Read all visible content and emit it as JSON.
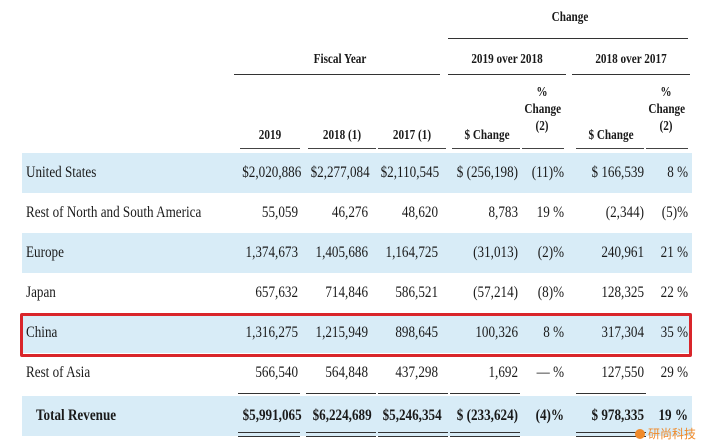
{
  "header": {
    "change": "Change",
    "fiscal_year": "Fiscal Year",
    "over_2018": "2019 over 2018",
    "over_2017": "2018 over 2017",
    "columns": [
      "2019",
      "2018 (1)",
      "2017 (1)",
      "$ Change",
      "% Change (2)",
      "$ Change",
      "% Change (2)"
    ]
  },
  "rows": [
    {
      "label": "United States",
      "v2019": "$2,020,886",
      "v2018": "$2,277,084",
      "v2017": "$2,110,545",
      "chg1": "$ (256,198)",
      "pct1": "(11)%",
      "chg2": "$  166,539",
      "pct2": "8 %"
    },
    {
      "label": "Rest of North and South America",
      "v2019": "55,059",
      "v2018": "46,276",
      "v2017": "48,620",
      "chg1": "8,783",
      "pct1": "19 %",
      "chg2": "(2,344)",
      "pct2": "(5)%"
    },
    {
      "label": "Europe",
      "v2019": "1,374,673",
      "v2018": "1,405,686",
      "v2017": "1,164,725",
      "chg1": "(31,013)",
      "pct1": "(2)%",
      "chg2": "240,961",
      "pct2": "21 %"
    },
    {
      "label": "Japan",
      "v2019": "657,632",
      "v2018": "714,846",
      "v2017": "586,521",
      "chg1": "(57,214)",
      "pct1": "(8)%",
      "chg2": "128,325",
      "pct2": "22 %"
    },
    {
      "label": "China",
      "v2019": "1,316,275",
      "v2018": "1,215,949",
      "v2017": "898,645",
      "chg1": "100,326",
      "pct1": "8 %",
      "chg2": "317,304",
      "pct2": "35 %"
    },
    {
      "label": "Rest of Asia",
      "v2019": "566,540",
      "v2018": "564,848",
      "v2017": "437,298",
      "chg1": "1,692",
      "pct1": "— %",
      "chg2": "127,550",
      "pct2": "29 %"
    }
  ],
  "total": {
    "label": "Total Revenue",
    "v2019": "$5,991,065",
    "v2018": "$6,224,689",
    "v2017": "$5,246,354",
    "chg1": "$ (233,624)",
    "pct1": "(4)%",
    "chg2": "$  978,335",
    "pct2": "19 %"
  },
  "watermark": "研尚科技",
  "colors": {
    "row_highlight": "#d8ecf7",
    "callout_border": "#d9252a",
    "watermark": "#f08a2a"
  }
}
